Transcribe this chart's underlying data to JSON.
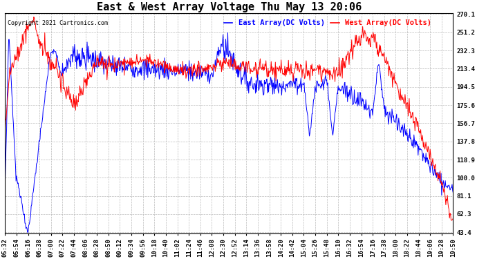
{
  "title": "East & West Array Voltage Thu May 13 20:06",
  "copyright": "Copyright 2021 Cartronics.com",
  "east_label": "East Array(DC Volts)",
  "west_label": "West Array(DC Volts)",
  "east_color": "blue",
  "west_color": "red",
  "y_min": 43.4,
  "y_max": 270.1,
  "y_ticks": [
    43.4,
    62.3,
    81.1,
    100.0,
    118.9,
    137.8,
    156.7,
    175.6,
    194.5,
    213.4,
    232.3,
    251.2,
    270.1
  ],
  "background_color": "white",
  "grid_color": "#bbbbbb",
  "title_color": "black",
  "title_fontsize": 11,
  "tick_label_fontsize": 6.5,
  "line_width": 0.7,
  "x_tick_labels": [
    "05:32",
    "05:54",
    "06:16",
    "06:38",
    "07:00",
    "07:22",
    "07:44",
    "08:06",
    "08:28",
    "08:50",
    "09:12",
    "09:34",
    "09:56",
    "10:18",
    "10:40",
    "11:02",
    "11:24",
    "11:46",
    "12:08",
    "12:30",
    "12:52",
    "13:14",
    "13:36",
    "13:58",
    "14:20",
    "14:42",
    "15:04",
    "15:26",
    "15:48",
    "16:10",
    "16:32",
    "16:54",
    "17:16",
    "17:38",
    "18:00",
    "18:22",
    "18:44",
    "19:06",
    "19:28",
    "19:50"
  ]
}
